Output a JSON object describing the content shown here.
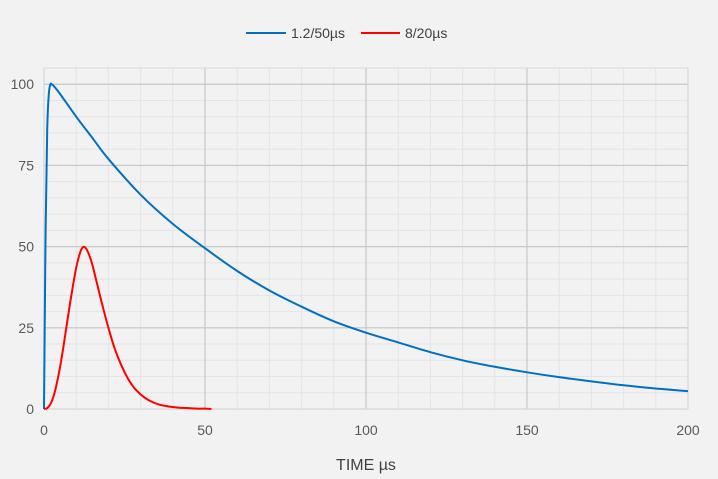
{
  "chart_data": {
    "type": "line",
    "title": "",
    "xlabel": "TIME µs",
    "ylabel": "",
    "xlim": [
      0,
      200
    ],
    "ylim": [
      0,
      105
    ],
    "x_ticks": [
      0,
      50,
      100,
      150,
      200
    ],
    "y_ticks": [
      0,
      25,
      50,
      75,
      100
    ],
    "x_minor_step": 10,
    "y_minor_step": 5,
    "grid": true,
    "legend_position": "top",
    "series": [
      {
        "name": "1.2/50µs",
        "color": "#0070c0",
        "x": [
          0,
          0.5,
          1,
          1.5,
          2,
          2.5,
          3,
          5,
          10,
          15,
          20,
          30,
          40,
          50,
          60,
          70,
          80,
          90,
          100,
          110,
          120,
          130,
          140,
          150,
          160,
          170,
          180,
          190,
          200
        ],
        "y": [
          0,
          55,
          86,
          97,
          100,
          99.9,
          99.5,
          97,
          90,
          83.5,
          77,
          66,
          57,
          49.5,
          42.5,
          36.5,
          31.5,
          27,
          23.5,
          20.5,
          17.5,
          15,
          13,
          11.3,
          9.8,
          8.5,
          7.3,
          6.3,
          5.5
        ]
      },
      {
        "name": "8/20µs",
        "color": "#ff0000",
        "x": [
          0,
          1,
          2,
          3,
          4,
          5,
          6,
          7,
          8,
          9,
          10,
          11,
          12,
          13,
          14,
          15,
          16,
          17,
          18,
          20,
          22,
          24,
          26,
          28,
          30,
          32,
          34,
          36,
          38,
          40,
          42,
          44,
          46,
          48,
          50,
          52
        ],
        "y": [
          0,
          0.3,
          1.5,
          4,
          8,
          13,
          19,
          25.5,
          32,
          38,
          43.5,
          47.5,
          49.8,
          49.5,
          47.5,
          44.5,
          40.5,
          36.5,
          32.5,
          25,
          18.5,
          13.5,
          9.5,
          6.5,
          4.5,
          3,
          2,
          1.3,
          0.9,
          0.6,
          0.4,
          0.3,
          0.2,
          0.1,
          0.1,
          0
        ]
      }
    ]
  }
}
